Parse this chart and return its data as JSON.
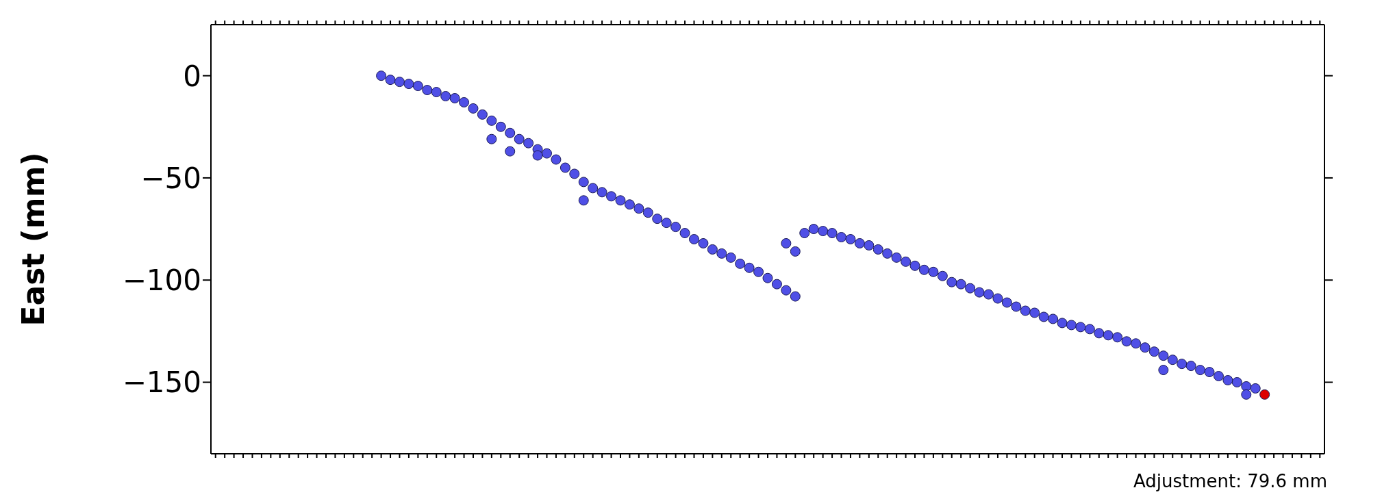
{
  "chart_data": {
    "type": "scatter",
    "ylabel": "East (mm)",
    "annotations": [
      "Adjustment: 79.6 mm"
    ],
    "categories": [
      null,
      null,
      null,
      null,
      null,
      null,
      null,
      null,
      null,
      null,
      null,
      null,
      null,
      null,
      null,
      null,
      null,
      null,
      null,
      null,
      null,
      null,
      null,
      null,
      null,
      null,
      null,
      null,
      null,
      null,
      null,
      null,
      null,
      null,
      null,
      null,
      null,
      null,
      null,
      null,
      null,
      null,
      null,
      null,
      null,
      null,
      null,
      null,
      null,
      null,
      null,
      null,
      null,
      null,
      null,
      null,
      null,
      null,
      null,
      null,
      null,
      null,
      null,
      null,
      null,
      null,
      null,
      null,
      null,
      null,
      null,
      null,
      null,
      null,
      null,
      null,
      null,
      null,
      null,
      null,
      null,
      null,
      null,
      null,
      null,
      null,
      null,
      null,
      null,
      null,
      null,
      null,
      null,
      null,
      null,
      null,
      null,
      null,
      null,
      null,
      null,
      null,
      null,
      null,
      null,
      null,
      null,
      null,
      null,
      null,
      null,
      null,
      null,
      null,
      null,
      null,
      null,
      null,
      null,
      null,
      null
    ],
    "ylim": [
      -185,
      25
    ],
    "yticks": [
      {
        "value": -150,
        "label": "−150"
      },
      {
        "value": -100,
        "label": "−100"
      },
      {
        "value": -50,
        "label": "−50"
      },
      {
        "value": 0,
        "label": "0"
      }
    ],
    "grid": false,
    "marker": "circle",
    "series": [
      {
        "color": "#4f4fe6",
        "values": [
          null,
          null,
          null,
          null,
          null,
          null,
          null,
          null,
          null,
          null,
          null,
          null,
          null,
          null,
          null,
          null,
          null,
          null,
          0,
          -2,
          -3,
          -4,
          -5,
          -7,
          -8,
          -10,
          -11,
          -13,
          -16,
          -19,
          -22,
          -25,
          -28,
          -31,
          -33,
          -36,
          -38,
          -41,
          -45,
          -48,
          -52,
          -55,
          -57,
          -59,
          -61,
          -63,
          -65,
          -67,
          -70,
          -72,
          -74,
          -77,
          -80,
          -82,
          -85,
          -87,
          -89,
          -92,
          -94,
          -96,
          -99,
          -102,
          -105,
          -108,
          null,
          null,
          null,
          null,
          null,
          null,
          null,
          null,
          null,
          null,
          null,
          null,
          null,
          null,
          null,
          null,
          null,
          null,
          null,
          null,
          null,
          null,
          null,
          null,
          null,
          null,
          null,
          null,
          null,
          null,
          null,
          null,
          null,
          null,
          null,
          null,
          null,
          null,
          null,
          null,
          null,
          null,
          null,
          null,
          null,
          null,
          null,
          null,
          null,
          null,
          null,
          null,
          null,
          null,
          null,
          null,
          null
        ]
      },
      {
        "color": "#4f4fe6",
        "values": [
          null,
          null,
          null,
          null,
          null,
          null,
          null,
          null,
          null,
          null,
          null,
          null,
          null,
          null,
          null,
          null,
          null,
          null,
          null,
          null,
          null,
          null,
          null,
          null,
          null,
          null,
          null,
          null,
          null,
          null,
          null,
          null,
          null,
          null,
          null,
          null,
          null,
          null,
          null,
          null,
          null,
          null,
          null,
          null,
          null,
          null,
          null,
          null,
          null,
          null,
          null,
          null,
          null,
          null,
          null,
          null,
          null,
          null,
          null,
          null,
          null,
          null,
          -82,
          -86,
          -77,
          -75,
          -76,
          -77,
          -79,
          -80,
          -82,
          -83,
          -85,
          -87,
          -89,
          -91,
          -93,
          -95,
          -96,
          -98,
          -101,
          -102,
          -104,
          -106,
          -107,
          -109,
          -111,
          -113,
          -115,
          -116,
          -118,
          -119,
          -121,
          -122,
          -123,
          -124,
          -126,
          -127,
          -128,
          -130,
          -131,
          -133,
          -135,
          -137,
          -139,
          -141,
          -142,
          -144,
          -145,
          -147,
          -149,
          -150,
          -152,
          -153,
          null,
          null,
          null,
          null,
          null,
          null,
          null
        ]
      },
      {
        "color": "#4f4fe6",
        "values": [
          null,
          null,
          null,
          null,
          null,
          null,
          null,
          null,
          null,
          null,
          null,
          null,
          null,
          null,
          null,
          null,
          null,
          null,
          null,
          null,
          null,
          null,
          null,
          null,
          null,
          null,
          null,
          null,
          null,
          null,
          -31,
          null,
          -37,
          null,
          null,
          -39,
          null,
          null,
          null,
          null,
          -61,
          null,
          null,
          null,
          null,
          null,
          null,
          null,
          null,
          null,
          null,
          null,
          null,
          null,
          null,
          null,
          null,
          null,
          null,
          null,
          null,
          null,
          null,
          null,
          null,
          null,
          null,
          null,
          null,
          null,
          null,
          null,
          null,
          null,
          null,
          null,
          null,
          null,
          null,
          null,
          null,
          null,
          null,
          null,
          null,
          null,
          null,
          null,
          null,
          null,
          null,
          null,
          null,
          null,
          null,
          null,
          null,
          null,
          null,
          null,
          null,
          null,
          null,
          -144,
          null,
          null,
          null,
          null,
          null,
          null,
          null,
          null,
          -156,
          null,
          null,
          null,
          null,
          null,
          null,
          null,
          null
        ]
      },
      {
        "color": "#dd0000",
        "values": [
          null,
          null,
          null,
          null,
          null,
          null,
          null,
          null,
          null,
          null,
          null,
          null,
          null,
          null,
          null,
          null,
          null,
          null,
          null,
          null,
          null,
          null,
          null,
          null,
          null,
          null,
          null,
          null,
          null,
          null,
          null,
          null,
          null,
          null,
          null,
          null,
          null,
          null,
          null,
          null,
          null,
          null,
          null,
          null,
          null,
          null,
          null,
          null,
          null,
          null,
          null,
          null,
          null,
          null,
          null,
          null,
          null,
          null,
          null,
          null,
          null,
          null,
          null,
          null,
          null,
          null,
          null,
          null,
          null,
          null,
          null,
          null,
          null,
          null,
          null,
          null,
          null,
          null,
          null,
          null,
          null,
          null,
          null,
          null,
          null,
          null,
          null,
          null,
          null,
          null,
          null,
          null,
          null,
          null,
          null,
          null,
          null,
          null,
          null,
          null,
          null,
          null,
          null,
          null,
          null,
          null,
          null,
          null,
          null,
          null,
          null,
          null,
          null,
          null,
          -156,
          null,
          null,
          null,
          null,
          null,
          null
        ]
      }
    ]
  }
}
